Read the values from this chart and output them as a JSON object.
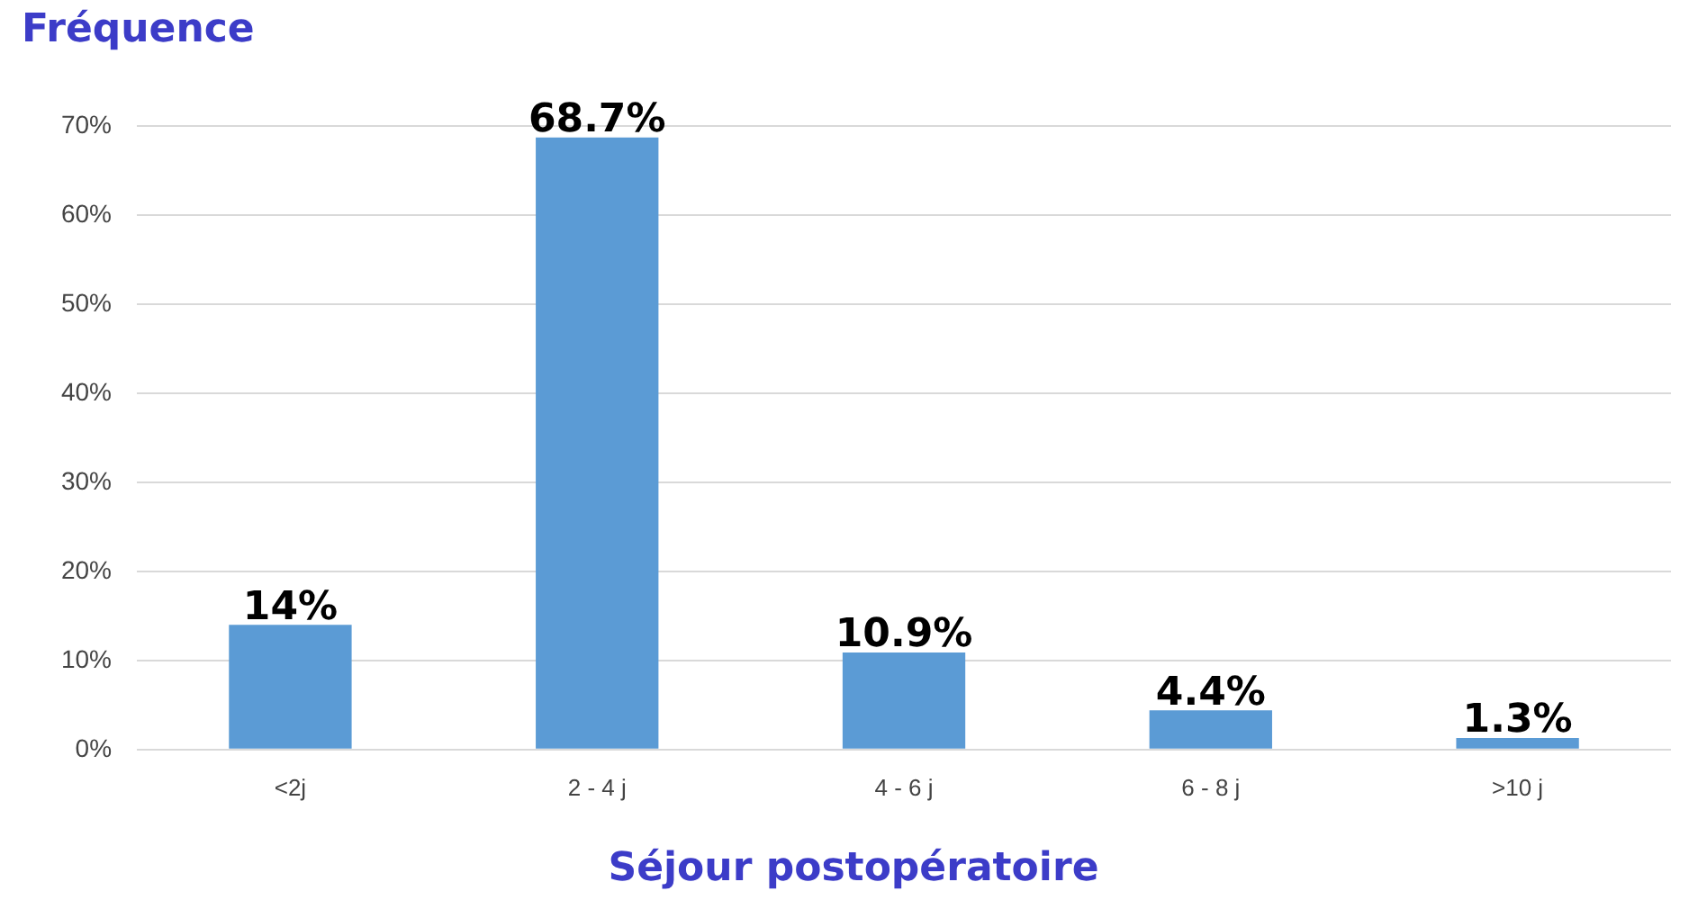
{
  "chart_data": {
    "type": "bar",
    "ylabel": "Fréquence",
    "xlabel": "Séjour postopératoire",
    "categories": [
      "<2j",
      "2 - 4 j",
      "4 - 6 j",
      "6 - 8 j",
      ">10 j"
    ],
    "values": [
      14,
      68.7,
      10.9,
      4.4,
      1.3
    ],
    "value_labels": [
      "14%",
      "68.7%",
      "10.9%",
      "4.4%",
      "1.3%"
    ],
    "color": "#5b9bd5",
    "ylim": [
      0,
      70
    ],
    "yticks": [
      {
        "value": 0,
        "label": "0%"
      },
      {
        "value": 10,
        "label": "10%"
      },
      {
        "value": 20,
        "label": "20%"
      },
      {
        "value": 30,
        "label": "30%"
      },
      {
        "value": 40,
        "label": "40%"
      },
      {
        "value": 50,
        "label": "50%"
      },
      {
        "value": 60,
        "label": "60%"
      },
      {
        "value": 70,
        "label": "70%"
      }
    ],
    "grid": "y",
    "legend": false
  }
}
